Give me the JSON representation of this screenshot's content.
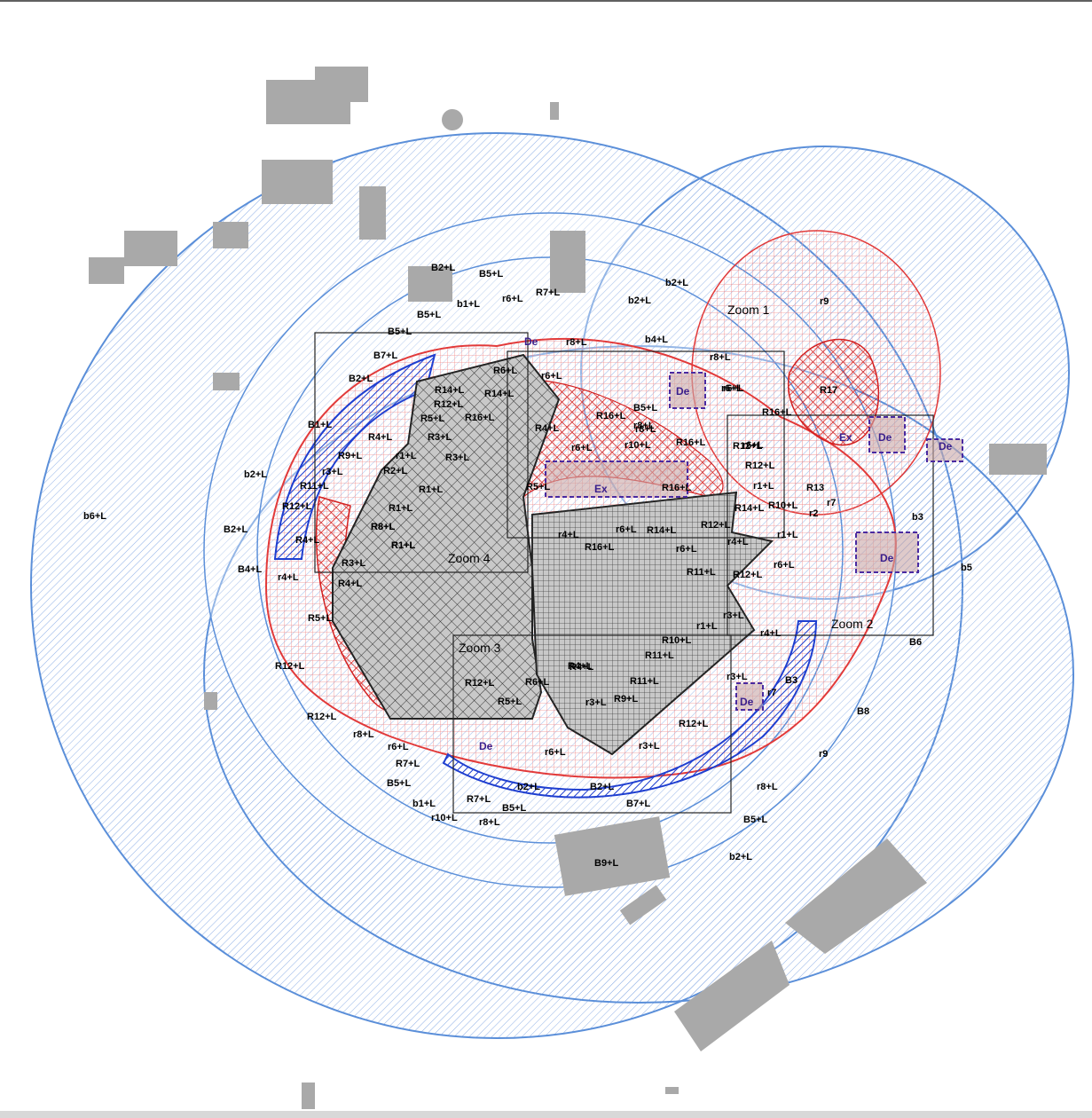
{
  "colors": {
    "blue_zone": "#5b8fd9",
    "blue_strong": "#1f3fd0",
    "red_zone": "#e23a3a",
    "building_gray": "#a9a9a9",
    "deposit_purple": "#4a2aa0"
  },
  "zoom_labels": [
    "Zoom 1",
    "Zoom 2",
    "Zoom 3",
    "Zoom 4"
  ],
  "zone_labels": {
    "b6L": "b6+L",
    "b5": "b5",
    "b3": "b3",
    "r9": "r9",
    "r17": "R17",
    "r13": "R13",
    "r2": "r2",
    "r7": "r7",
    "b6": "B6",
    "b8": "B8",
    "r9b": "r9",
    "r7b": "r7",
    "b3b": "B3"
  },
  "de_label": "De",
  "ex_label": "Ex",
  "labels": [
    "B2+L",
    "B5+L",
    "b1+L",
    "r6+L",
    "R7+L",
    "b2+L",
    "b2+L",
    "B5+L",
    "b4+L",
    "B5+L",
    "B7+L",
    "B2+L",
    "R6+L",
    "r8+L",
    "r8+L",
    "r6+L",
    "R14+L",
    "R12+L",
    "R14+L",
    "R16+L",
    "R5+L",
    "R4+L",
    "R3+L",
    "R4+L",
    "R3+L",
    "r6+L",
    "R16+L",
    "r8+L",
    "r10+L",
    "R16+L",
    "B5+L",
    "r6+L",
    "r6+L",
    "R16+L",
    "B1+L",
    "R9+L",
    "r3+L",
    "R11+L",
    "R2+L",
    "r1+L",
    "R1+L",
    "R1+L",
    "R12+L",
    "R8+L",
    "R1+L",
    "R4+L",
    "R3+L",
    "R4+L",
    "b2+L",
    "B2+L",
    "B4+L",
    "r4+L",
    "R5+L",
    "R12+L",
    "R12+L",
    "r8+L",
    "r6+L",
    "R7+L",
    "B5+L",
    "b1+L",
    "r10+L",
    "R7+L",
    "B5+L",
    "r8+L",
    "b2+L",
    "R12+L",
    "R5+L",
    "R6+L",
    "R4+L",
    "r3+L",
    "R9+L",
    "r3+L",
    "r6+L",
    "B2+L",
    "B7+L",
    "B9+L",
    "b2+L",
    "B5+L",
    "r8+L",
    "R5+L",
    "r4+L",
    "r6+L",
    "R14+L",
    "R16+L",
    "R12+L",
    "r4+L",
    "r6+L",
    "R11+L",
    "R12+L",
    "r3+L",
    "r1+L",
    "r4+L",
    "R10+L",
    "R11+L",
    "R11+L",
    "r3+L",
    "R12+L",
    "R14+L",
    "R12+L",
    "r1+L",
    "R12+L",
    "R10+L",
    "r1+L",
    "r6+L",
    "r8+L",
    "R16+L",
    "R8+L",
    "R1+L",
    "r6+L",
    "R4+L"
  ]
}
